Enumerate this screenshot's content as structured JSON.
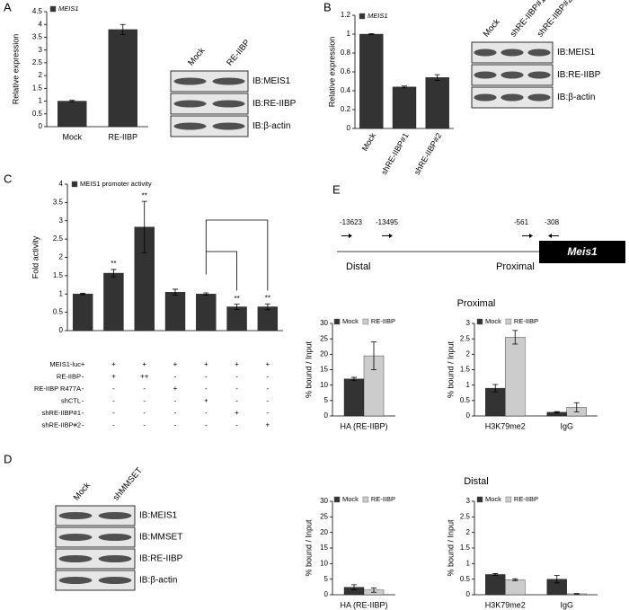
{
  "panels": [
    "A",
    "B",
    "C",
    "D",
    "E"
  ],
  "chart_data": [
    {
      "type": "bar",
      "ylabel": "Relative expression",
      "categories": [
        "Mock",
        "RE-IIBP"
      ],
      "series": [
        {
          "name": "MEIS1",
          "color": "#333333",
          "values": [
            1,
            3.8
          ],
          "errors": [
            0.03,
            0.2
          ]
        }
      ],
      "ylim": [
        0,
        4.5
      ],
      "yticks": [
        0,
        0.5,
        1,
        1.5,
        2,
        2.5,
        3,
        3.5,
        4,
        4.5
      ]
    },
    {
      "type": "bar",
      "ylabel": "Relative expression",
      "categories": [
        "Mock",
        "shRE-IIBP#1",
        "shRE-IIBP#2"
      ],
      "series": [
        {
          "name": "MEIS1",
          "color": "#333333",
          "values": [
            1,
            0.44,
            0.54
          ],
          "errors": [
            0.005,
            0.01,
            0.03
          ]
        }
      ],
      "ylim": [
        0,
        1.2
      ],
      "yticks": [
        0,
        0.2,
        0.4,
        0.6,
        0.8,
        1,
        1.2
      ]
    },
    {
      "type": "bar",
      "ylabel": "Fold activity",
      "series": [
        {
          "name": "MEIS1 promoter activity",
          "color": "#333333",
          "values": [
            1,
            1.57,
            2.83,
            1.05,
            1,
            0.65,
            0.65
          ],
          "errors": [
            0.02,
            0.1,
            0.7,
            0.08,
            0.03,
            0.07,
            0.08
          ]
        }
      ],
      "annotations": [
        {
          "text": "**",
          "index": 1
        },
        {
          "text": "**",
          "index": 2
        },
        {
          "text": "**",
          "index": 5
        },
        {
          "text": "**",
          "index": 6
        }
      ],
      "ylim": [
        0,
        4
      ],
      "yticks": [
        0,
        0.5,
        1,
        1.5,
        2,
        2.5,
        3,
        3.5,
        4
      ]
    },
    {
      "type": "bar",
      "ylabel": "% bound / Input",
      "categories": [
        "HA (RE-IIBP)"
      ],
      "series": [
        {
          "name": "Mock",
          "color": "#333333",
          "values": [
            12
          ],
          "errors": [
            0.5
          ]
        },
        {
          "name": "RE-IIBP",
          "color": "#cccccc",
          "values": [
            19.5
          ],
          "errors": [
            4.5
          ]
        }
      ],
      "ylim": [
        0,
        30
      ],
      "yticks": [
        0,
        5,
        10,
        15,
        20,
        25,
        30
      ]
    },
    {
      "type": "bar",
      "ylabel": "% bound / Input",
      "categories": [
        "H3K79me2",
        "IgG"
      ],
      "series": [
        {
          "name": "Mock",
          "color": "#333333",
          "values": [
            0.9,
            0.12
          ],
          "errors": [
            0.12,
            0.02
          ]
        },
        {
          "name": "RE-IIBP",
          "color": "#cccccc",
          "values": [
            2.55,
            0.28
          ],
          "errors": [
            0.22,
            0.15
          ]
        }
      ],
      "ylim": [
        0,
        3
      ],
      "yticks": [
        0,
        0.5,
        1,
        1.5,
        2,
        2.5,
        3
      ]
    },
    {
      "type": "bar",
      "ylabel": "% bound / Input",
      "categories": [
        "HA (RE-IIBP)"
      ],
      "series": [
        {
          "name": "Mock",
          "color": "#333333",
          "values": [
            2.4
          ],
          "errors": [
            0.8
          ]
        },
        {
          "name": "RE-IIBP",
          "color": "#cccccc",
          "values": [
            1.5
          ],
          "errors": [
            0.7
          ]
        }
      ],
      "ylim": [
        0,
        30
      ],
      "yticks": [
        0,
        5,
        10,
        15,
        20,
        25,
        30
      ]
    },
    {
      "type": "bar",
      "ylabel": "% bound / Input",
      "categories": [
        "H3K79me2",
        "IgG"
      ],
      "series": [
        {
          "name": "Mock",
          "color": "#333333",
          "values": [
            0.65,
            0.5
          ],
          "errors": [
            0.03,
            0.12
          ]
        },
        {
          "name": "RE-IIBP",
          "color": "#cccccc",
          "values": [
            0.48,
            0.03
          ],
          "errors": [
            0.03,
            0.01
          ]
        }
      ],
      "ylim": [
        0,
        3
      ],
      "yticks": [
        0,
        0.5,
        1,
        1.5,
        2,
        2.5,
        3
      ]
    }
  ],
  "conditions": [
    {
      "label": "MEIS1-luc",
      "cells": [
        "+",
        "+",
        "+",
        "+",
        "+",
        "+",
        "+"
      ]
    },
    {
      "label": "RE-IIBP",
      "cells": [
        "-",
        "+",
        "++",
        "-",
        "-",
        "-",
        "-"
      ]
    },
    {
      "label": "RE-IIBP  R477A",
      "cells": [
        "-",
        "-",
        "-",
        "+",
        "-",
        "-",
        "-"
      ]
    },
    {
      "label": "shCTL",
      "cells": [
        "-",
        "-",
        "-",
        "-",
        "+",
        "-",
        "-"
      ]
    },
    {
      "label": "shRE-IIBP#1",
      "cells": [
        "-",
        "-",
        "-",
        "-",
        "-",
        "+",
        "-"
      ]
    },
    {
      "label": "shRE-IIBP#2",
      "cells": [
        "-",
        "-",
        "-",
        "-",
        "-",
        "-",
        "+"
      ]
    }
  ],
  "blots": [
    {
      "lanes": [
        "Mock",
        "RE-IIBP"
      ],
      "rows": [
        "IB:MEIS1",
        "IB:RE-IIBP",
        "IB:β-actin"
      ]
    },
    {
      "lanes": [
        "Mock",
        "shRE-IIBP#1",
        "shRE-IIBP#2"
      ],
      "rows": [
        "IB:MEIS1",
        "IB:RE-IIBP",
        "IB:β-actin"
      ]
    },
    {
      "lanes": [
        "Mock",
        "shMMSET"
      ],
      "rows": [
        "IB:MEIS1",
        "IB:MMSET",
        "IB:RE-IIBP",
        "IB:β-actin"
      ]
    }
  ],
  "diagram": {
    "positions": [
      "-13623",
      "-13495",
      "-561",
      "-308"
    ],
    "regions": [
      "Distal",
      "Proximal"
    ],
    "gene": "Meis1"
  },
  "section_titles": [
    "Proximal",
    "Distal"
  ]
}
